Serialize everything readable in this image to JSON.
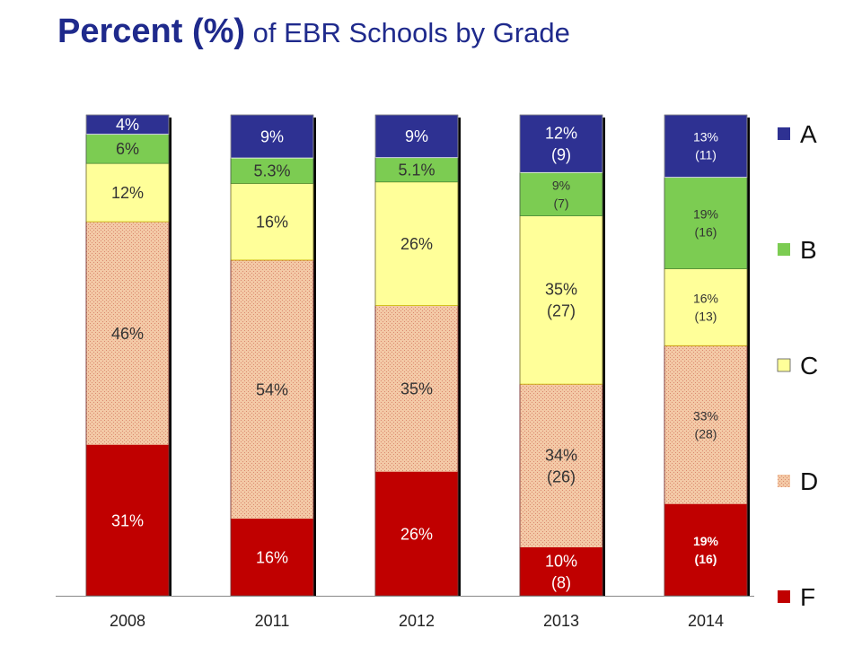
{
  "title": {
    "bold": "Percent (%)",
    "rest": " of EBR Schools by Grade"
  },
  "colors": {
    "A": "#2e3192",
    "B": "#7ccc52",
    "C": "#ffff99",
    "D": "#f3c9a6",
    "F": "#c00000",
    "title": "#1f2a8c"
  },
  "chart_data": {
    "type": "bar",
    "stacked": true,
    "title": "Percent (%) of EBR Schools by Grade",
    "categories": [
      "2008",
      "2011",
      "2012",
      "2013",
      "2014"
    ],
    "ylim": [
      0,
      100
    ],
    "legend_position": "right",
    "series": [
      {
        "name": "F",
        "values": [
          31,
          16,
          26,
          10,
          19
        ],
        "labels": [
          "31%",
          "16%",
          "26%",
          "10%|(8)",
          "19%|(16)"
        ]
      },
      {
        "name": "D",
        "values": [
          46,
          54,
          35,
          34,
          33
        ],
        "labels": [
          "46%",
          "54%",
          "35%",
          "34%|(26)",
          "33%|(28)"
        ]
      },
      {
        "name": "C",
        "values": [
          12,
          16,
          26,
          35,
          16
        ],
        "labels": [
          "12%",
          "16%",
          "26%",
          "35%|(27)",
          "16%|(13)"
        ]
      },
      {
        "name": "B",
        "values": [
          6,
          5.3,
          5.1,
          9,
          19
        ],
        "labels": [
          "6%",
          "5.3%",
          "5.1%",
          "9%|(7)",
          "19%|(16)"
        ]
      },
      {
        "name": "A",
        "values": [
          4,
          9,
          9,
          12,
          13
        ],
        "labels": [
          "4%",
          "9%",
          "9%",
          "12%|(9)",
          "13%|(11)"
        ]
      }
    ]
  }
}
